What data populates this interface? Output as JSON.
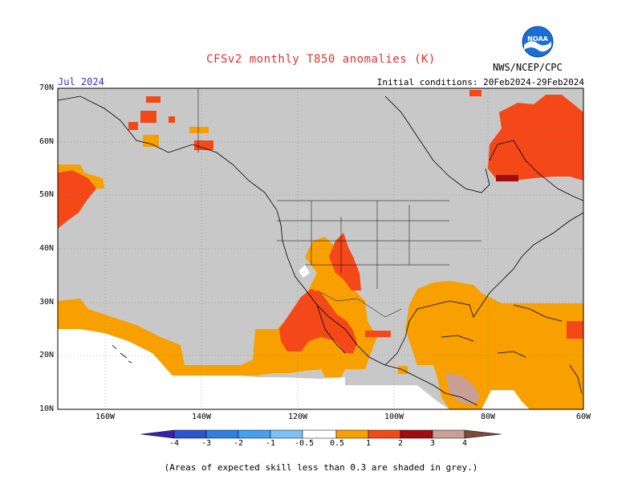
{
  "title": "CFSv2 monthly T850 anomalies (K)",
  "valid_month": "Jul 2024",
  "agency": "NWS/NCEP/CPC",
  "logo_text": "NOAA",
  "initial_conditions": "Initial conditions: 20Feb2024-29Feb2024",
  "lat_labels": [
    "70N",
    "60N",
    "50N",
    "40N",
    "30N",
    "20N",
    "10N"
  ],
  "lon_labels": [
    "160W",
    "140W",
    "120W",
    "100W",
    "80W",
    "60W"
  ],
  "colorbar": {
    "labels": [
      "-4",
      "-3",
      "-2",
      "-1",
      "-0.5",
      "0.5",
      "1",
      "2",
      "3",
      "4"
    ],
    "colors": [
      "#3a1fb0",
      "#2a55d0",
      "#2e7fe0",
      "#46a0ee",
      "#7dc0f5",
      "#ffffff",
      "#f7a000",
      "#f44818",
      "#a00c10",
      "#c9a096",
      "#7a4a3a"
    ]
  },
  "legend_note": "(Areas of expected skill less than 0.3 are shaded in grey.)",
  "colors": {
    "skill_grey": "#c8c8c8",
    "anom_0_5_1": "#f7a000",
    "anom_1_2": "#f44818",
    "anom_2_3": "#a00c10",
    "ocean_no_skill": "#ffffff"
  }
}
